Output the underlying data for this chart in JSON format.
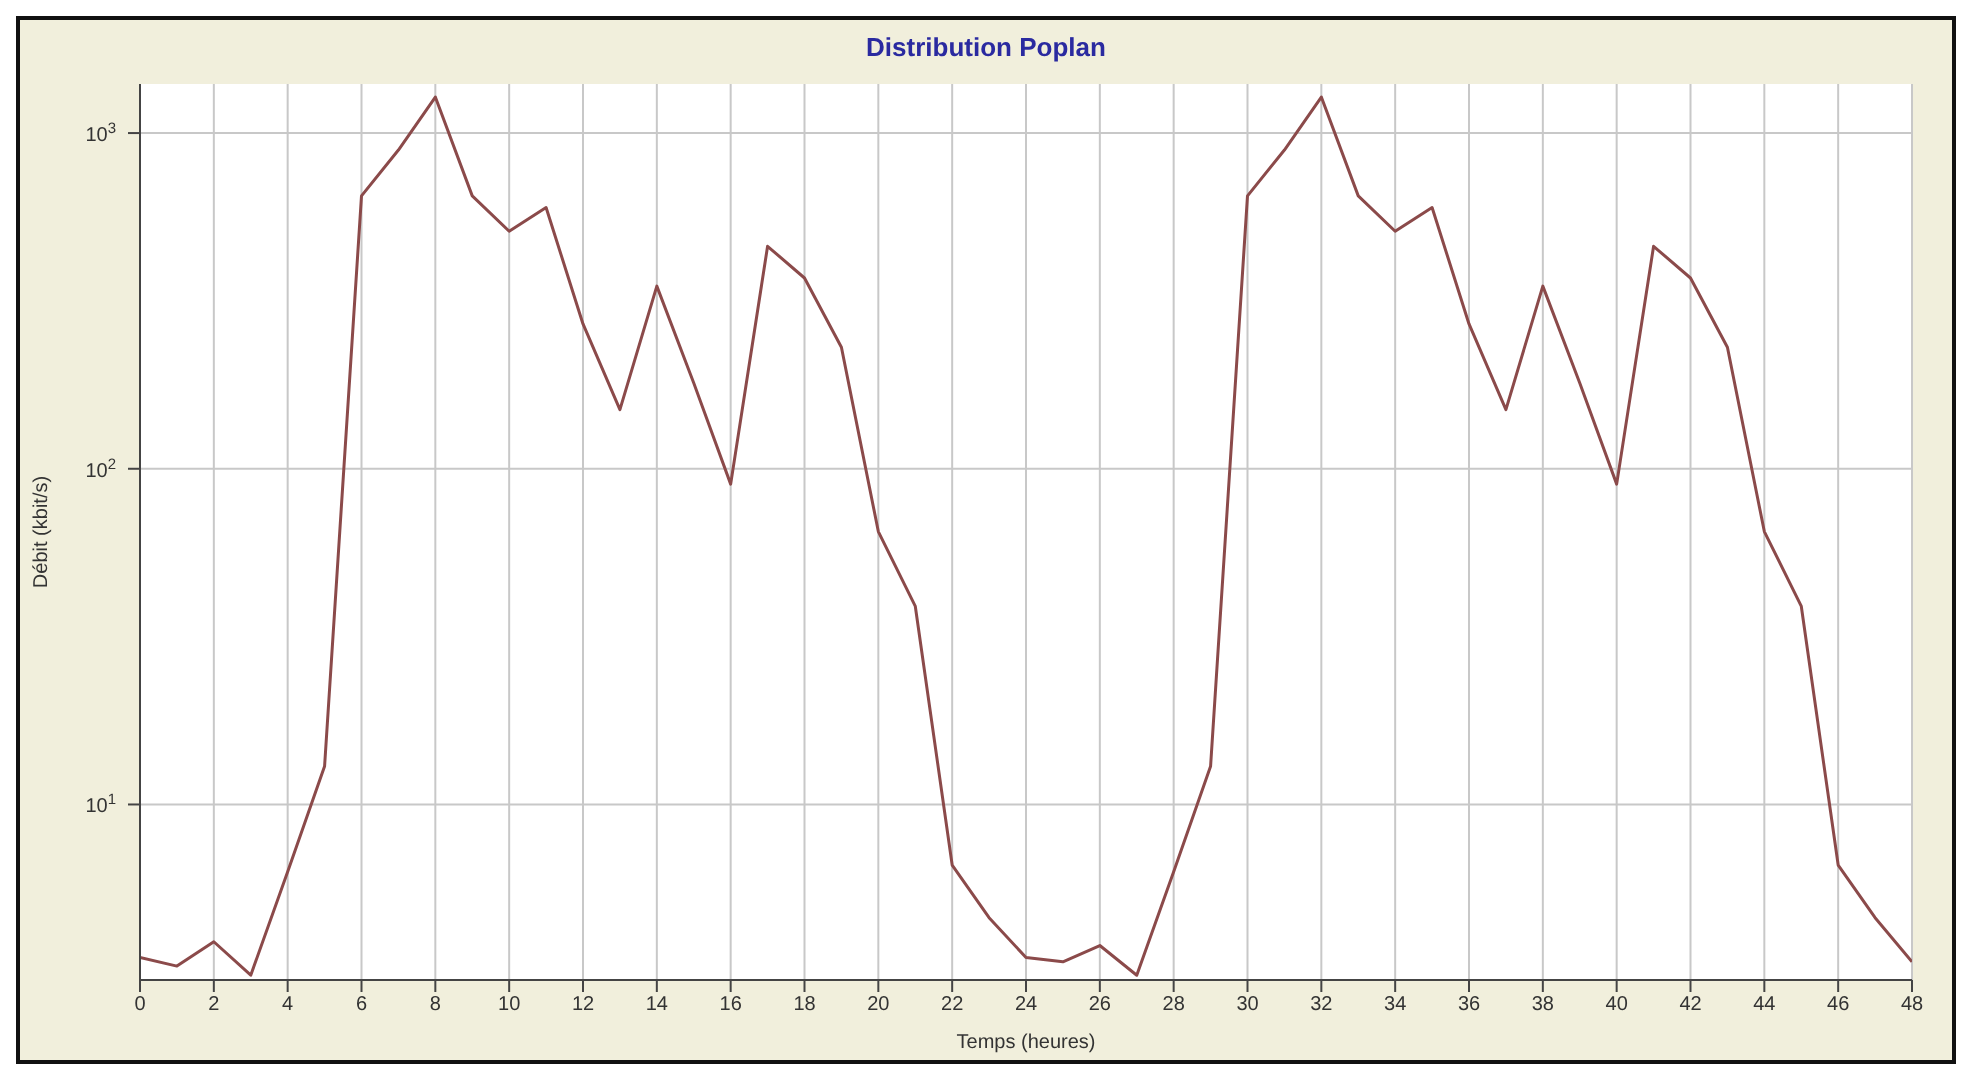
{
  "chart_data": {
    "type": "line",
    "title": "Distribution Poplan",
    "xlabel": "Temps (heures)",
    "ylabel": "Débit (kbit/s)",
    "x": [
      0,
      1,
      2,
      3,
      4,
      5,
      6,
      7,
      8,
      9,
      10,
      11,
      12,
      13,
      14,
      15,
      16,
      17,
      18,
      19,
      20,
      21,
      22,
      23,
      24,
      25,
      26,
      27,
      28,
      29,
      30,
      31,
      32,
      33,
      34,
      35,
      36,
      37,
      38,
      39,
      40,
      41,
      42,
      43,
      44,
      45,
      46,
      47,
      48
    ],
    "series": [
      {
        "color": "#8b4a4a",
        "values": [
          3.5,
          3.3,
          3.9,
          3.1,
          6.3,
          13,
          650,
          890,
          1280,
          650,
          510,
          600,
          270,
          150,
          350,
          180,
          90,
          460,
          370,
          230,
          65,
          39,
          6.6,
          4.6,
          3.5,
          3.4,
          3.8,
          3.1,
          6.3,
          13,
          650,
          890,
          1280,
          650,
          510,
          600,
          270,
          150,
          350,
          180,
          90,
          460,
          370,
          230,
          65,
          39,
          6.6,
          4.6,
          3.4
        ]
      }
    ],
    "xlim": [
      0,
      48
    ],
    "xticks": [
      0,
      2,
      4,
      6,
      8,
      10,
      12,
      14,
      16,
      18,
      20,
      22,
      24,
      26,
      28,
      30,
      32,
      34,
      36,
      38,
      40,
      42,
      44,
      46,
      48
    ],
    "ylim": [
      3,
      1400
    ],
    "yticks": [
      {
        "value": 10,
        "label": "10$^{1}$"
      },
      {
        "value": 100,
        "label": "10$^{2}$"
      },
      {
        "value": 1000,
        "label": "10$^{3}$"
      }
    ],
    "log": "y",
    "grid": true,
    "legend": false,
    "marker": "none",
    "line_style": "solid"
  }
}
